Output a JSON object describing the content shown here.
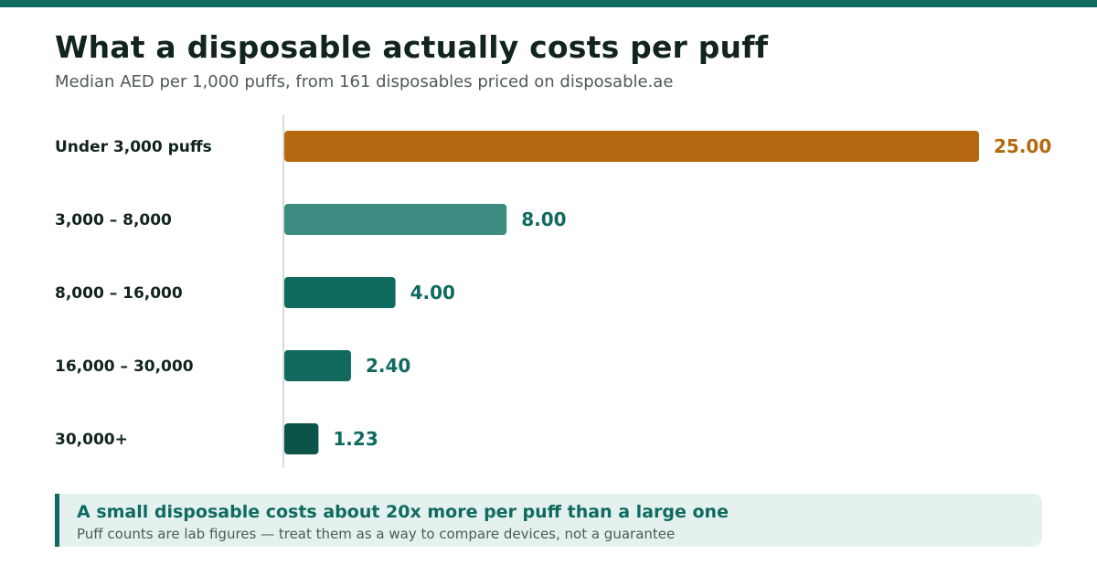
{
  "header": {
    "title": "What a disposable actually costs per puff",
    "subtitle": "Median AED per 1,000 puffs, from 161 disposables priced on disposable.ae"
  },
  "chart_data": {
    "type": "bar",
    "orientation": "horizontal",
    "categories": [
      "Under 3,000 puffs",
      "3,000 – 8,000",
      "8,000 – 16,000",
      "16,000 – 30,000",
      "30,000+"
    ],
    "values": [
      25.0,
      8.0,
      4.0,
      2.4,
      1.23
    ],
    "value_labels": [
      "25.00",
      "8.00",
      "4.00",
      "2.40",
      "1.23"
    ],
    "bar_colors": [
      "#b5680f",
      "#3d8c82",
      "#0f6b5f",
      "#126a5e",
      "#0c5449"
    ],
    "label_colors": [
      "#b5680f",
      "#0f6b5f",
      "#0f6b5f",
      "#0f6b5f",
      "#0f6b5f"
    ],
    "xlim": [
      0,
      25
    ],
    "grid": false,
    "title": "What a disposable actually costs per puff",
    "xlabel": "",
    "ylabel": ""
  },
  "callout": {
    "title": "A small disposable costs about 20x more per puff than a large one",
    "subtitle": "Puff counts are lab figures — treat them as a way to compare devices, not a guarantee"
  },
  "colors": {
    "accent": "#0f6b5f",
    "highlight": "#b5680f",
    "callout_bg": "#e4f1ee"
  }
}
